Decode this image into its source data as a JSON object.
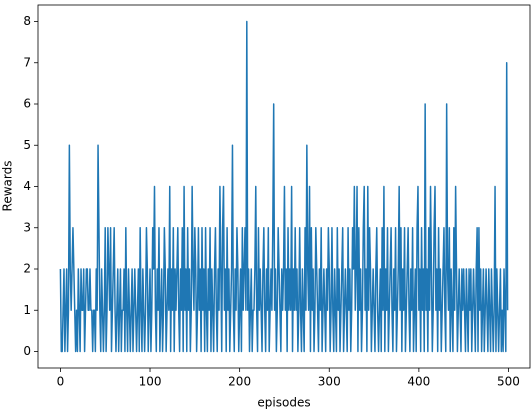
{
  "chart_data": {
    "type": "line",
    "xlabel": "episodes",
    "ylabel": "Rewards",
    "xlim": [
      -25,
      524
    ],
    "ylim": [
      -0.4,
      8.4
    ],
    "xticks": [
      0,
      100,
      200,
      300,
      400,
      500
    ],
    "yticks": [
      0,
      1,
      2,
      3,
      4,
      5,
      6,
      7,
      8
    ],
    "x": [
      0,
      1,
      2,
      3,
      4,
      5,
      6,
      7,
      8,
      9,
      10,
      11,
      12,
      13,
      14,
      15,
      16,
      17,
      18,
      19,
      20,
      21,
      22,
      23,
      24,
      25,
      26,
      27,
      28,
      29,
      30,
      31,
      32,
      33,
      34,
      35,
      36,
      37,
      38,
      39,
      40,
      41,
      42,
      43,
      44,
      45,
      46,
      47,
      48,
      49,
      50,
      51,
      52,
      53,
      54,
      55,
      56,
      57,
      58,
      59,
      60,
      61,
      62,
      63,
      64,
      65,
      66,
      67,
      68,
      69,
      70,
      71,
      72,
      73,
      74,
      75,
      76,
      77,
      78,
      79,
      80,
      81,
      82,
      83,
      84,
      85,
      86,
      87,
      88,
      89,
      90,
      91,
      92,
      93,
      94,
      95,
      96,
      97,
      98,
      99,
      100,
      101,
      102,
      103,
      104,
      105,
      106,
      107,
      108,
      109,
      110,
      111,
      112,
      113,
      114,
      115,
      116,
      117,
      118,
      119,
      120,
      121,
      122,
      123,
      124,
      125,
      126,
      127,
      128,
      129,
      130,
      131,
      132,
      133,
      134,
      135,
      136,
      137,
      138,
      139,
      140,
      141,
      142,
      143,
      144,
      145,
      146,
      147,
      148,
      149,
      150,
      151,
      152,
      153,
      154,
      155,
      156,
      157,
      158,
      159,
      160,
      161,
      162,
      163,
      164,
      165,
      166,
      167,
      168,
      169,
      170,
      171,
      172,
      173,
      174,
      175,
      176,
      177,
      178,
      179,
      180,
      181,
      182,
      183,
      184,
      185,
      186,
      187,
      188,
      189,
      190,
      191,
      192,
      193,
      194,
      195,
      196,
      197,
      198,
      199,
      200,
      201,
      202,
      203,
      204,
      205,
      206,
      207,
      208,
      209,
      210,
      211,
      212,
      213,
      214,
      215,
      216,
      217,
      218,
      219,
      220,
      221,
      222,
      223,
      224,
      225,
      226,
      227,
      228,
      229,
      230,
      231,
      232,
      233,
      234,
      235,
      236,
      237,
      238,
      239,
      240,
      241,
      242,
      243,
      244,
      245,
      246,
      247,
      248,
      249,
      250,
      251,
      252,
      253,
      254,
      255,
      256,
      257,
      258,
      259,
      260,
      261,
      262,
      263,
      264,
      265,
      266,
      267,
      268,
      269,
      270,
      271,
      272,
      273,
      274,
      275,
      276,
      277,
      278,
      279,
      280,
      281,
      282,
      283,
      284,
      285,
      286,
      287,
      288,
      289,
      290,
      291,
      292,
      293,
      294,
      295,
      296,
      297,
      298,
      299,
      300,
      301,
      302,
      303,
      304,
      305,
      306,
      307,
      308,
      309,
      310,
      311,
      312,
      313,
      314,
      315,
      316,
      317,
      318,
      319,
      320,
      321,
      322,
      323,
      324,
      325,
      326,
      327,
      328,
      329,
      330,
      331,
      332,
      333,
      334,
      335,
      336,
      337,
      338,
      339,
      340,
      341,
      342,
      343,
      344,
      345,
      346,
      347,
      348,
      349,
      350,
      351,
      352,
      353,
      354,
      355,
      356,
      357,
      358,
      359,
      360,
      361,
      362,
      363,
      364,
      365,
      366,
      367,
      368,
      369,
      370,
      371,
      372,
      373,
      374,
      375,
      376,
      377,
      378,
      379,
      380,
      381,
      382,
      383,
      384,
      385,
      386,
      387,
      388,
      389,
      390,
      391,
      392,
      393,
      394,
      395,
      396,
      397,
      398,
      399,
      400,
      401,
      402,
      403,
      404,
      405,
      406,
      407,
      408,
      409,
      410,
      411,
      412,
      413,
      414,
      415,
      416,
      417,
      418,
      419,
      420,
      421,
      422,
      423,
      424,
      425,
      426,
      427,
      428,
      429,
      430,
      431,
      432,
      433,
      434,
      435,
      436,
      437,
      438,
      439,
      440,
      441,
      442,
      443,
      444,
      445,
      446,
      447,
      448,
      449,
      450,
      451,
      452,
      453,
      454,
      455,
      456,
      457,
      458,
      459,
      460,
      461,
      462,
      463,
      464,
      465,
      466,
      467,
      468,
      469,
      470,
      471,
      472,
      473,
      474,
      475,
      476,
      477,
      478,
      479,
      480,
      481,
      482,
      483,
      484,
      485,
      486,
      487,
      488,
      489,
      490,
      491,
      492,
      493,
      494,
      495,
      496,
      497,
      498,
      499
    ],
    "series": [
      {
        "color": "#1f77b4",
        "values": [
          2,
          0,
          0,
          1,
          2,
          0,
          1,
          2,
          0,
          1,
          5,
          2,
          1,
          2,
          3,
          2,
          1,
          0,
          1,
          0,
          2,
          1,
          0,
          2,
          1,
          1,
          2,
          0,
          1,
          2,
          2,
          1,
          1,
          2,
          1,
          1,
          0,
          1,
          1,
          0,
          2,
          1,
          5,
          3,
          1,
          0,
          2,
          1,
          0,
          1,
          3,
          0,
          1,
          3,
          2,
          1,
          3,
          0,
          1,
          2,
          3,
          1,
          0,
          1,
          2,
          0,
          1,
          2,
          0,
          1,
          1,
          2,
          0,
          3,
          1,
          0,
          2,
          1,
          0,
          1,
          2,
          0,
          1,
          2,
          1,
          0,
          1,
          2,
          0,
          3,
          1,
          0,
          2,
          1,
          0,
          1,
          3,
          2,
          0,
          1,
          2,
          0,
          1,
          3,
          2,
          4,
          1,
          0,
          2,
          1,
          3,
          0,
          1,
          2,
          0,
          1,
          3,
          2,
          0,
          1,
          2,
          1,
          4,
          0,
          2,
          1,
          3,
          0,
          2,
          1,
          2,
          3,
          1,
          0,
          2,
          1,
          3,
          0,
          4,
          1,
          2,
          0,
          3,
          1,
          2,
          0,
          1,
          4,
          2,
          1,
          3,
          2,
          0,
          1,
          3,
          1,
          2,
          0,
          3,
          1,
          2,
          0,
          3,
          1,
          0,
          2,
          1,
          3,
          0,
          2,
          1,
          0,
          2,
          3,
          1,
          0,
          2,
          1,
          4,
          2,
          0,
          3,
          4,
          1,
          2,
          0,
          3,
          1,
          2,
          0,
          1,
          2,
          5,
          1,
          0,
          2,
          1,
          3,
          2,
          0,
          1,
          2,
          0,
          3,
          1,
          2,
          3,
          1,
          8,
          1,
          2,
          0,
          1,
          2,
          0,
          1,
          1,
          2,
          4,
          1,
          0,
          3,
          1,
          2,
          1,
          0,
          2,
          3,
          1,
          0,
          2,
          1,
          3,
          0,
          1,
          2,
          1,
          3,
          6,
          1,
          2,
          0,
          1,
          3,
          2,
          1,
          0,
          2,
          1,
          2,
          4,
          1,
          2,
          0,
          3,
          1,
          2,
          1,
          4,
          0,
          2,
          1,
          3,
          1,
          2,
          0,
          1,
          3,
          1,
          0,
          2,
          1,
          0,
          3,
          1,
          5,
          2,
          1,
          4,
          0,
          3,
          1,
          2,
          0,
          1,
          3,
          2,
          1,
          0,
          2,
          1,
          3,
          0,
          1,
          2,
          1,
          0,
          2,
          1,
          3,
          2,
          0,
          1,
          3,
          1,
          0,
          2,
          1,
          0,
          3,
          1,
          2,
          0,
          1,
          2,
          3,
          0,
          1,
          2,
          1,
          0,
          3,
          1,
          2,
          0,
          1,
          3,
          2,
          4,
          1,
          2,
          4,
          0,
          3,
          1,
          2,
          0,
          1,
          3,
          4,
          1,
          2,
          0,
          4,
          1,
          3,
          2,
          0,
          1,
          2,
          1,
          0,
          2,
          3,
          1,
          0,
          1,
          2,
          0,
          3,
          1,
          4,
          0,
          2,
          1,
          3,
          0,
          1,
          2,
          3,
          1,
          0,
          2,
          1,
          3,
          0,
          1,
          2,
          4,
          1,
          3,
          0,
          2,
          1,
          3,
          0,
          1,
          2,
          3,
          1,
          0,
          2,
          1,
          3,
          0,
          1,
          2,
          0,
          3,
          4,
          1,
          2,
          0,
          3,
          1,
          2,
          0,
          6,
          1,
          2,
          0,
          3,
          1,
          4,
          2,
          0,
          1,
          3,
          4,
          1,
          2,
          0,
          3,
          1,
          2,
          0,
          1,
          2,
          3,
          1,
          0,
          6,
          2,
          1,
          3,
          0,
          2,
          1,
          0,
          3,
          1,
          4,
          2,
          0,
          1,
          2,
          1,
          0,
          2,
          1,
          2,
          1,
          0,
          2,
          1,
          0,
          2,
          1,
          2,
          0,
          1,
          2,
          1,
          0,
          2,
          3,
          0,
          3,
          1,
          2,
          0,
          1,
          2,
          0,
          1,
          2,
          1,
          0,
          2,
          1,
          0,
          2,
          1,
          0,
          1,
          4,
          0,
          2,
          1,
          0,
          1,
          2,
          0,
          1,
          0,
          2,
          1,
          0,
          7,
          1
        ]
      }
    ]
  }
}
